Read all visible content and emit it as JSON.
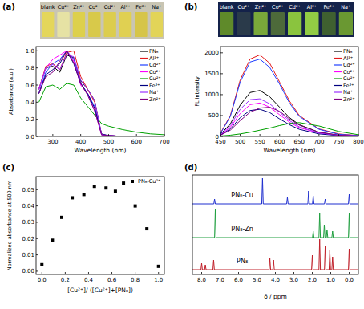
{
  "chart_data": [
    {
      "type": "line",
      "title": "(a)",
      "annotations": [
        "blank",
        "Cu²⁺",
        "Zn²⁺",
        "Co²⁺",
        "Cd²⁺",
        "Al³⁺",
        "Fe³⁺",
        "Na⁺"
      ],
      "x_label": "Wavelength (nm)",
      "y_label": "Absorbance (a.u.)",
      "x": [
        250,
        275,
        300,
        325,
        350,
        375,
        400,
        425,
        450,
        475,
        500,
        550,
        600,
        650,
        700
      ],
      "series": [
        {
          "name": "PN₈",
          "color": "#000000",
          "values": [
            0.55,
            0.8,
            0.82,
            0.75,
            0.95,
            0.92,
            0.65,
            0.55,
            0.42,
            0.02,
            0.01,
            0,
            0,
            0,
            0
          ]
        },
        {
          "name": "Al³⁺",
          "color": "#e41a1c",
          "values": [
            0.55,
            0.82,
            0.85,
            0.78,
            0.98,
            1.0,
            0.7,
            0.55,
            0.4,
            0.02,
            0.01,
            0,
            0,
            0,
            0
          ]
        },
        {
          "name": "Cd²⁺",
          "color": "#1f3fff",
          "values": [
            0.5,
            0.75,
            0.85,
            0.9,
            1.0,
            0.9,
            0.62,
            0.5,
            0.35,
            0.02,
            0.01,
            0,
            0,
            0,
            0
          ]
        },
        {
          "name": "Co²⁺",
          "color": "#ff00ff",
          "values": [
            0.55,
            0.8,
            0.9,
            0.95,
            1.0,
            0.88,
            0.6,
            0.5,
            0.3,
            0.02,
            0.01,
            0,
            0,
            0,
            0
          ]
        },
        {
          "name": "Cu²⁺",
          "color": "#00a000",
          "values": [
            0.4,
            0.58,
            0.6,
            0.55,
            0.62,
            0.6,
            0.45,
            0.35,
            0.25,
            0.15,
            0.12,
            0.08,
            0.05,
            0.03,
            0.02
          ]
        },
        {
          "name": "Fe³⁺",
          "color": "#000080",
          "values": [
            0.5,
            0.72,
            0.78,
            0.85,
            1.0,
            0.85,
            0.62,
            0.5,
            0.33,
            0.03,
            0.01,
            0,
            0,
            0,
            0
          ]
        },
        {
          "name": "Na⁺",
          "color": "#9b30ff",
          "values": [
            0.55,
            0.8,
            0.84,
            0.78,
            0.96,
            0.93,
            0.66,
            0.55,
            0.42,
            0.02,
            0.01,
            0,
            0,
            0,
            0
          ]
        },
        {
          "name": "Zn²⁺",
          "color": "#800080",
          "values": [
            0.5,
            0.7,
            0.75,
            0.88,
            1.0,
            0.86,
            0.62,
            0.48,
            0.3,
            0.02,
            0.01,
            0,
            0,
            0,
            0
          ]
        }
      ],
      "xlim": [
        240,
        700
      ],
      "xticks": [
        300,
        400,
        500,
        600,
        700
      ],
      "ylim": [
        0,
        1.05
      ],
      "yticks": [
        {
          "value": 0,
          "label": "0.0"
        },
        {
          "value": 0.2,
          "label": "0.2"
        },
        {
          "value": 0.4,
          "label": "0.4"
        },
        {
          "value": 0.6,
          "label": "0.6"
        },
        {
          "value": 0.8,
          "label": "0.8"
        },
        {
          "value": 1,
          "label": "1.0"
        }
      ],
      "legend": "upper right"
    },
    {
      "type": "line",
      "title": "(b)",
      "annotations": [
        "blank",
        "Cu²⁺",
        "Zn²⁺",
        "Co²⁺",
        "Cd²⁺",
        "Al³⁺",
        "Fe³⁺",
        "Na⁺"
      ],
      "x_label": "Wavelength (nm)",
      "y_label": "FL Intensity",
      "x": [
        450,
        475,
        500,
        525,
        550,
        575,
        600,
        625,
        650,
        700,
        750,
        800
      ],
      "series": [
        {
          "name": "PN₈",
          "color": "#000000",
          "values": [
            50,
            300,
            750,
            1050,
            1100,
            950,
            700,
            450,
            280,
            100,
            30,
            10
          ]
        },
        {
          "name": "Al³⁺",
          "color": "#e41a1c",
          "values": [
            80,
            500,
            1350,
            1850,
            1950,
            1750,
            1300,
            850,
            500,
            180,
            60,
            20
          ]
        },
        {
          "name": "Cd²⁺",
          "color": "#1f3fff",
          "values": [
            70,
            480,
            1300,
            1780,
            1850,
            1650,
            1250,
            800,
            480,
            170,
            50,
            20
          ]
        },
        {
          "name": "Co²⁺",
          "color": "#ff00ff",
          "values": [
            30,
            220,
            550,
            760,
            800,
            700,
            520,
            340,
            210,
            80,
            25,
            10
          ]
        },
        {
          "name": "Cu²⁺",
          "color": "#00a000",
          "values": [
            10,
            30,
            60,
            100,
            150,
            200,
            260,
            310,
            330,
            250,
            120,
            40
          ]
        },
        {
          "name": "Fe³⁺",
          "color": "#000080",
          "values": [
            30,
            180,
            450,
            620,
            650,
            570,
            420,
            280,
            170,
            60,
            20,
            5
          ]
        },
        {
          "name": "Na⁺",
          "color": "#9b30ff",
          "values": [
            40,
            260,
            650,
            880,
            900,
            780,
            580,
            380,
            230,
            85,
            25,
            10
          ]
        },
        {
          "name": "Zn²⁺",
          "color": "#800080",
          "values": [
            30,
            150,
            380,
            580,
            680,
            700,
            600,
            420,
            270,
            100,
            30,
            10
          ]
        }
      ],
      "xlim": [
        450,
        800
      ],
      "xticks": [
        450,
        500,
        550,
        600,
        650,
        700,
        750,
        800
      ],
      "ylim": [
        0,
        2150
      ],
      "yticks": [
        0,
        500,
        1000,
        1500,
        2000
      ],
      "legend": "upper right"
    },
    {
      "type": "scatter",
      "title": "(c)",
      "x_label": "[Cu²⁺]/ ([Cu²⁺]+[PN₈])",
      "y_label": "Normalized absorbance at 500 nm",
      "x": [
        0.0,
        0.09,
        0.17,
        0.26,
        0.36,
        0.45,
        0.55,
        0.63,
        0.7,
        0.8,
        0.9,
        1.0
      ],
      "series": [
        {
          "name": "PN₈-Cu²⁺",
          "color": "#000000",
          "marker": "square",
          "values": [
            0.004,
            0.019,
            0.033,
            0.045,
            0.047,
            0.052,
            0.051,
            0.049,
            0.054,
            0.04,
            0.026,
            0.003
          ]
        }
      ],
      "xlim": [
        -0.05,
        1.05
      ],
      "xticks": [
        {
          "value": 0,
          "label": "0.0"
        },
        {
          "value": 0.2,
          "label": "0.2"
        },
        {
          "value": 0.4,
          "label": "0.4"
        },
        {
          "value": 0.6,
          "label": "0.6"
        },
        {
          "value": 0.8,
          "label": "0.8"
        },
        {
          "value": 1,
          "label": "1.0"
        }
      ],
      "ylim": [
        -0.002,
        0.058
      ],
      "yticks": [
        {
          "value": 0,
          "label": "0.00"
        },
        {
          "value": 0.01,
          "label": "0.01"
        },
        {
          "value": 0.02,
          "label": "0.02"
        },
        {
          "value": 0.03,
          "label": "0.03"
        },
        {
          "value": 0.04,
          "label": "0.04"
        },
        {
          "value": 0.05,
          "label": "0.05"
        }
      ],
      "legend": "upper right"
    },
    {
      "type": "line",
      "title": "(d)",
      "x_label": "δ / ppm",
      "series": [
        {
          "name": "PN₈-Cu",
          "color": "#1f2fcf",
          "x": [
            8.5,
            7.34,
            7.3,
            7.26,
            4.74,
            4.7,
            4.66,
            3.39,
            3.35,
            3.31,
            2.24,
            2.2,
            2.16,
            1.99,
            1.95,
            1.91,
            1.34,
            1.3,
            1.26,
            0.04,
            0.0,
            -0.04,
            -0.5
          ],
          "values": [
            2.2,
            2.2,
            2.35,
            2.2,
            2.2,
            3.0,
            2.2,
            2.2,
            2.4,
            2.2,
            2.2,
            2.6,
            2.2,
            2.2,
            2.45,
            2.2,
            2.2,
            2.35,
            2.2,
            2.2,
            2.5,
            2.2,
            2.2
          ]
        },
        {
          "name": "PN₈-Zn",
          "color": "#1f9f3f",
          "x": [
            8.5,
            7.3,
            7.26,
            7.22,
            1.99,
            1.95,
            1.91,
            1.64,
            1.6,
            1.56,
            1.39,
            1.35,
            1.31,
            1.24,
            1.2,
            1.16,
            0.94,
            0.9,
            0.86,
            0.04,
            0.0,
            -0.04,
            -0.5
          ],
          "values": [
            1.15,
            1.15,
            2.05,
            1.15,
            1.15,
            1.35,
            1.15,
            1.15,
            1.9,
            1.15,
            1.15,
            1.55,
            1.15,
            1.15,
            1.4,
            1.15,
            1.15,
            1.35,
            1.15,
            1.15,
            1.9,
            1.15,
            1.15
          ]
        },
        {
          "name": "PN₈",
          "color": "#c0202a",
          "x": [
            8.5,
            8.04,
            8.0,
            7.96,
            7.84,
            7.8,
            7.76,
            7.39,
            7.35,
            7.31,
            4.34,
            4.3,
            4.26,
            4.14,
            4.1,
            4.06,
            2.04,
            2.0,
            1.96,
            1.64,
            1.6,
            1.56,
            1.34,
            1.3,
            1.26,
            1.09,
            1.05,
            1.01,
            0.94,
            0.9,
            0.86,
            0.04,
            0.0,
            -0.04,
            -0.5
          ],
          "values": [
            0.15,
            0.15,
            0.35,
            0.15,
            0.15,
            0.3,
            0.15,
            0.15,
            0.45,
            0.15,
            0.15,
            0.5,
            0.15,
            0.15,
            0.45,
            0.15,
            0.15,
            0.6,
            0.15,
            0.15,
            1.1,
            0.15,
            0.15,
            0.9,
            0.15,
            0.15,
            0.75,
            0.15,
            0.15,
            0.55,
            0.15,
            0.15,
            0.8,
            0.15,
            0.15
          ]
        }
      ],
      "xlim": [
        8.5,
        -0.5
      ],
      "xticks": [
        {
          "value": 8,
          "label": "8.0"
        },
        {
          "value": 7,
          "label": "7.0"
        },
        {
          "value": 6,
          "label": "6.0"
        },
        {
          "value": 5,
          "label": "5.0"
        },
        {
          "value": 4,
          "label": "4.0"
        },
        {
          "value": 3,
          "label": "3.0"
        },
        {
          "value": 2,
          "label": "2.0"
        },
        {
          "value": 1,
          "label": "1.0"
        },
        {
          "value": 0,
          "label": "0.0"
        }
      ],
      "ylim": [
        0,
        3.1
      ],
      "tick_labels": "x"
    }
  ]
}
